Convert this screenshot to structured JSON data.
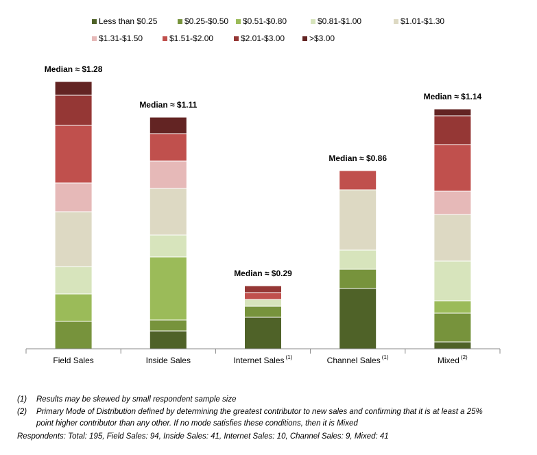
{
  "chart_data": {
    "type": "stacked_bar",
    "categories": [
      "Field Sales",
      "Inside Sales",
      "Internet Sales",
      "Channel Sales",
      "Mixed"
    ],
    "category_notes": [
      null,
      null,
      "(1)",
      "(1)",
      "(2)"
    ],
    "annotations": [
      "Median ≈ $1.28",
      "Median ≈ $1.11",
      "Median ≈ $0.29",
      "Median ≈ $0.86",
      "Median ≈ $1.14"
    ],
    "ylim": [
      0,
      100
    ],
    "series": [
      {
        "name": "Less than $0.25",
        "color": "#4f6228",
        "values": [
          0,
          6.5,
          11.5,
          22,
          2.5
        ]
      },
      {
        "name": "$0.25-$0.50",
        "color": "#77933c",
        "values": [
          10,
          4,
          4,
          7,
          10.5
        ]
      },
      {
        "name": "$0.51-$0.80",
        "color": "#9bbb59",
        "values": [
          10,
          23,
          0,
          0,
          4.5
        ]
      },
      {
        "name": "$0.81-$1.00",
        "color": "#d7e4bc",
        "values": [
          10,
          8,
          2.5,
          7,
          14.5
        ]
      },
      {
        "name": "$1.01-$1.30",
        "color": "#ddd9c3",
        "values": [
          20,
          17,
          0,
          22,
          17
        ]
      },
      {
        "name": "$1.31-$1.50",
        "color": "#e6b9b8",
        "values": [
          10.5,
          10,
          0,
          0,
          8.5
        ]
      },
      {
        "name": "$1.51-$2.00",
        "color": "#c0504d",
        "values": [
          21,
          10,
          2.5,
          7,
          17
        ]
      },
      {
        "name": "$2.01-$3.00",
        "color": "#953735",
        "values": [
          11,
          0,
          2.5,
          0,
          10.5
        ]
      },
      {
        "name": ">$3.00",
        "color": "#632423",
        "values": [
          5,
          6,
          0,
          0,
          2.5
        ]
      }
    ],
    "footnotes": [
      {
        "marker": "(1)",
        "lines": [
          "Results may be skewed by small respondent sample size"
        ]
      },
      {
        "marker": "(2)",
        "lines": [
          "Primary Mode of Distribution defined by determining the greatest contributor to new sales and confirming that it is at least a 25%",
          "point higher contributor than any other.  If no mode satisfies these conditions, then it is Mixed"
        ]
      }
    ],
    "respondents": "Respondents: Total: 195, Field Sales: 94, Inside Sales: 41, Internet Sales: 10, Channel Sales: 9, Mixed: 41"
  }
}
